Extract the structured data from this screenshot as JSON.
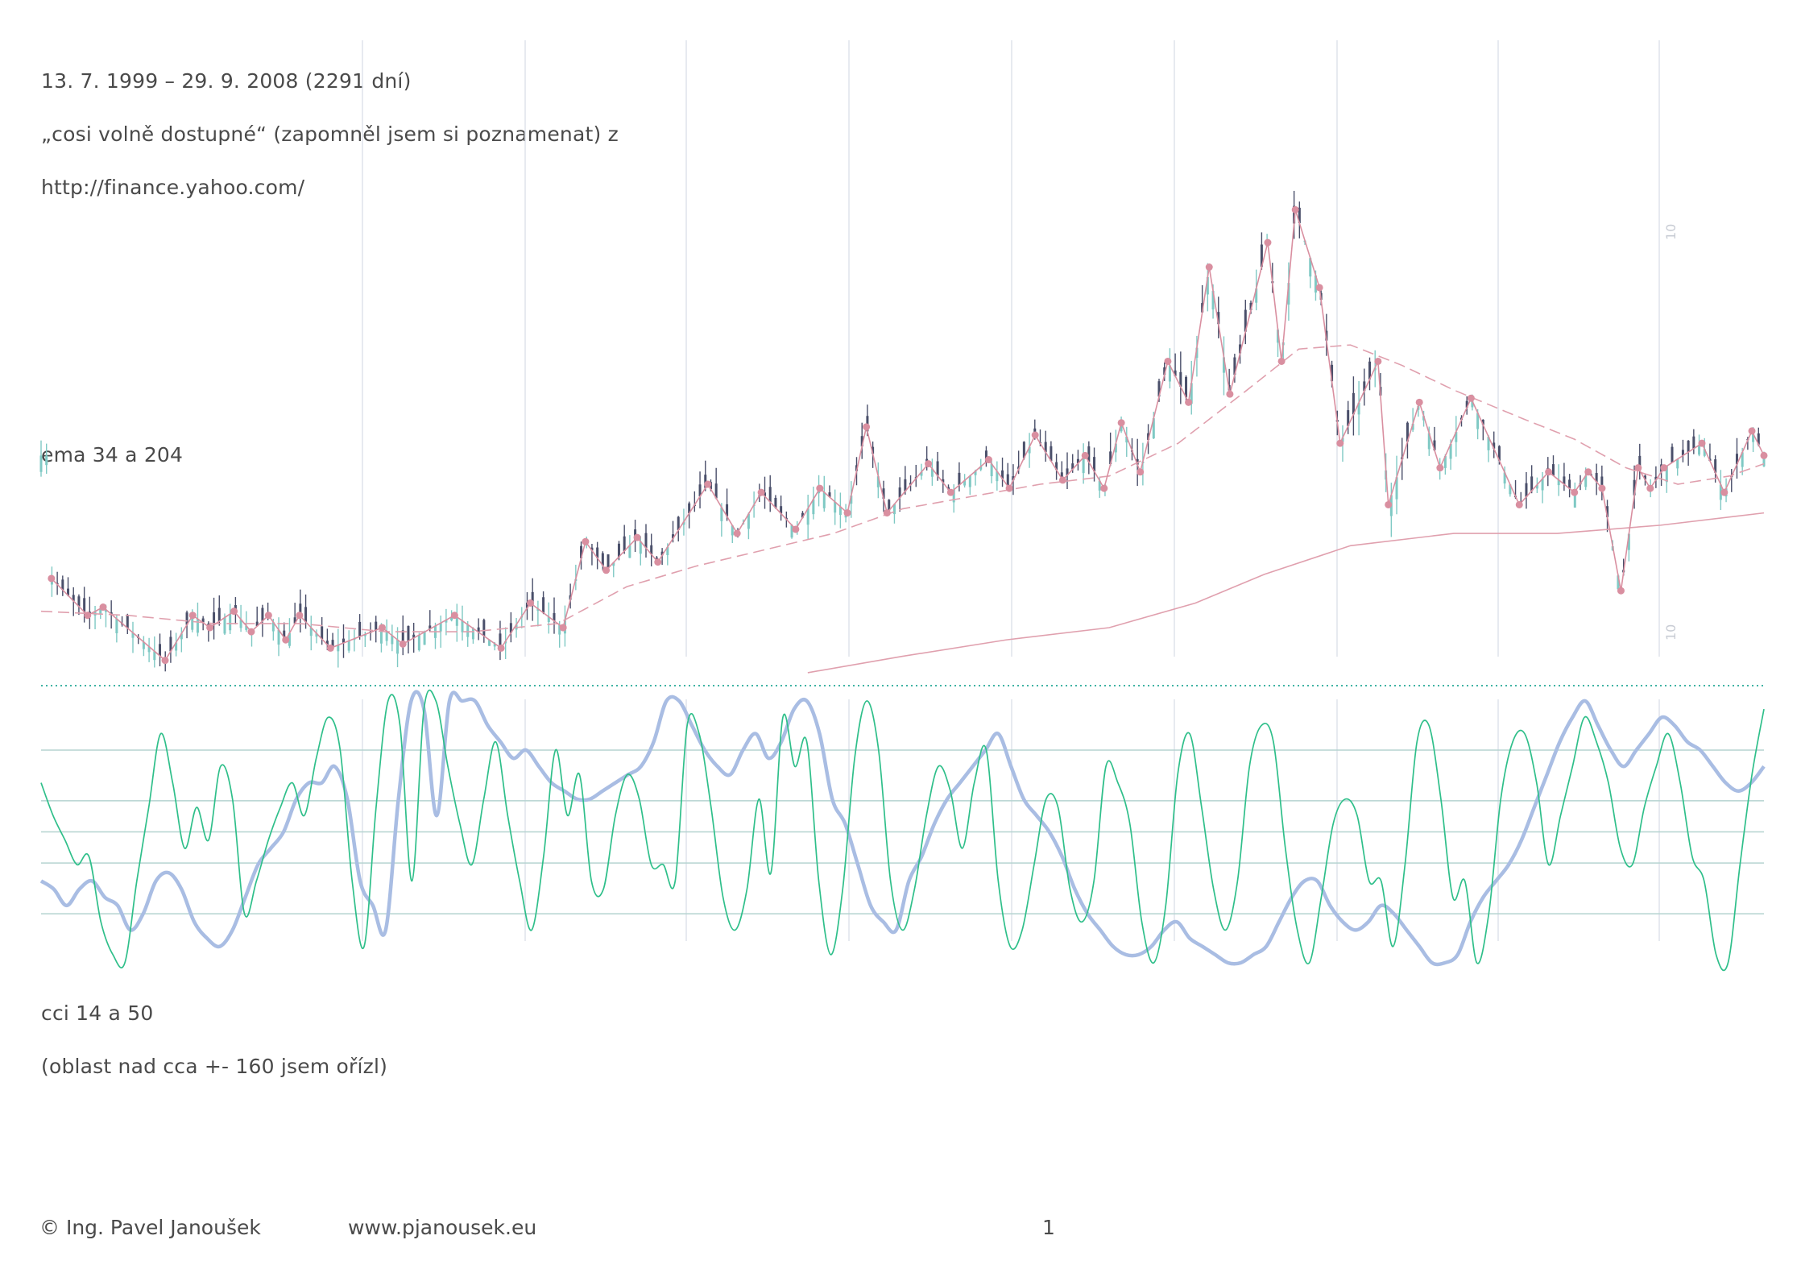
{
  "header": {
    "date_range": "13. 7. 1999 – 29. 9. 2008 (2291 dní)",
    "source_line": "„cosi volně dostupné“ (zapomněl jsem si poznamenat) z",
    "source_url": "http://finance.yahoo.com/"
  },
  "labels": {
    "ema": "ema 34 a 204",
    "cci": "cci 14 a 50",
    "cci_note": "(oblast nad cca +- 160 jsem ořízl)"
  },
  "footer": {
    "author": "© Ing. Pavel Janoušek",
    "website": "www.pjanousek.eu",
    "page_number": "1"
  },
  "colors": {
    "text": "#4a4a4a",
    "grid": "#dfe3ec",
    "candle_up": "#7fc9c4",
    "candle_down": "#4a4f6a",
    "zigzag": "#d98fa0",
    "ema": "#e0a0ae",
    "cci_fast": "#2fbf8a",
    "cci_slow": "#a9bde3",
    "cci_levels": "#b5d3d0",
    "separator": "#3fb3a3"
  },
  "chart_data": [
    {
      "type": "candlestick",
      "title": "",
      "axis_tick_labels": [
        "10",
        "10"
      ],
      "period": {
        "start": "1999-07-13",
        "end": "2008-09-29",
        "days": 2291
      },
      "zigzag_pivots": [
        {
          "x": 0.006,
          "y": 12.2
        },
        {
          "x": 0.027,
          "y": 11.3
        },
        {
          "x": 0.036,
          "y": 11.5
        },
        {
          "x": 0.072,
          "y": 10.2
        },
        {
          "x": 0.088,
          "y": 11.3
        },
        {
          "x": 0.098,
          "y": 11.0
        },
        {
          "x": 0.112,
          "y": 11.4
        },
        {
          "x": 0.122,
          "y": 10.9
        },
        {
          "x": 0.132,
          "y": 11.3
        },
        {
          "x": 0.142,
          "y": 10.7
        },
        {
          "x": 0.15,
          "y": 11.3
        },
        {
          "x": 0.168,
          "y": 10.5
        },
        {
          "x": 0.198,
          "y": 11.0
        },
        {
          "x": 0.21,
          "y": 10.6
        },
        {
          "x": 0.24,
          "y": 11.3
        },
        {
          "x": 0.267,
          "y": 10.5
        },
        {
          "x": 0.284,
          "y": 11.6
        },
        {
          "x": 0.303,
          "y": 11.0
        },
        {
          "x": 0.303,
          "y": 11.0
        },
        {
          "x": 0.316,
          "y": 13.1
        },
        {
          "x": 0.328,
          "y": 12.4
        },
        {
          "x": 0.346,
          "y": 13.2
        },
        {
          "x": 0.358,
          "y": 12.6
        },
        {
          "x": 0.387,
          "y": 14.5
        },
        {
          "x": 0.404,
          "y": 13.3
        },
        {
          "x": 0.418,
          "y": 14.3
        },
        {
          "x": 0.438,
          "y": 13.4
        },
        {
          "x": 0.452,
          "y": 14.4
        },
        {
          "x": 0.468,
          "y": 13.8
        },
        {
          "x": 0.479,
          "y": 15.9
        },
        {
          "x": 0.491,
          "y": 13.8
        },
        {
          "x": 0.515,
          "y": 15.0
        },
        {
          "x": 0.528,
          "y": 14.3
        },
        {
          "x": 0.55,
          "y": 15.1
        },
        {
          "x": 0.562,
          "y": 14.4
        },
        {
          "x": 0.577,
          "y": 15.7
        },
        {
          "x": 0.593,
          "y": 14.6
        },
        {
          "x": 0.606,
          "y": 15.2
        },
        {
          "x": 0.617,
          "y": 14.4
        },
        {
          "x": 0.627,
          "y": 16.0
        },
        {
          "x": 0.638,
          "y": 14.8
        },
        {
          "x": 0.654,
          "y": 17.5
        },
        {
          "x": 0.666,
          "y": 16.5
        },
        {
          "x": 0.678,
          "y": 19.8
        },
        {
          "x": 0.69,
          "y": 16.7
        },
        {
          "x": 0.712,
          "y": 20.4
        },
        {
          "x": 0.72,
          "y": 17.5
        },
        {
          "x": 0.728,
          "y": 21.2
        },
        {
          "x": 0.742,
          "y": 19.3
        },
        {
          "x": 0.754,
          "y": 15.5
        },
        {
          "x": 0.776,
          "y": 17.5
        },
        {
          "x": 0.782,
          "y": 14.0
        },
        {
          "x": 0.8,
          "y": 16.5
        },
        {
          "x": 0.812,
          "y": 14.9
        },
        {
          "x": 0.83,
          "y": 16.6
        },
        {
          "x": 0.858,
          "y": 14.0
        },
        {
          "x": 0.875,
          "y": 14.8
        },
        {
          "x": 0.89,
          "y": 14.3
        },
        {
          "x": 0.898,
          "y": 14.8
        },
        {
          "x": 0.906,
          "y": 14.4
        },
        {
          "x": 0.917,
          "y": 11.9
        },
        {
          "x": 0.927,
          "y": 14.9
        },
        {
          "x": 0.934,
          "y": 14.4
        },
        {
          "x": 0.942,
          "y": 14.9
        },
        {
          "x": 0.964,
          "y": 15.5
        },
        {
          "x": 0.977,
          "y": 14.3
        },
        {
          "x": 0.993,
          "y": 15.8
        },
        {
          "x": 1.0,
          "y": 15.2
        }
      ],
      "ema_34": [
        {
          "x": 0.0,
          "y": 11.4
        },
        {
          "x": 0.05,
          "y": 11.3
        },
        {
          "x": 0.1,
          "y": 11.1
        },
        {
          "x": 0.15,
          "y": 11.1
        },
        {
          "x": 0.2,
          "y": 10.9
        },
        {
          "x": 0.25,
          "y": 10.9
        },
        {
          "x": 0.3,
          "y": 11.1
        },
        {
          "x": 0.34,
          "y": 12.0
        },
        {
          "x": 0.38,
          "y": 12.5
        },
        {
          "x": 0.42,
          "y": 12.9
        },
        {
          "x": 0.46,
          "y": 13.3
        },
        {
          "x": 0.5,
          "y": 13.9
        },
        {
          "x": 0.54,
          "y": 14.2
        },
        {
          "x": 0.58,
          "y": 14.5
        },
        {
          "x": 0.62,
          "y": 14.7
        },
        {
          "x": 0.66,
          "y": 15.5
        },
        {
          "x": 0.7,
          "y": 16.8
        },
        {
          "x": 0.73,
          "y": 17.8
        },
        {
          "x": 0.76,
          "y": 17.9
        },
        {
          "x": 0.79,
          "y": 17.4
        },
        {
          "x": 0.82,
          "y": 16.8
        },
        {
          "x": 0.86,
          "y": 16.1
        },
        {
          "x": 0.89,
          "y": 15.6
        },
        {
          "x": 0.92,
          "y": 14.9
        },
        {
          "x": 0.95,
          "y": 14.5
        },
        {
          "x": 0.98,
          "y": 14.7
        },
        {
          "x": 1.0,
          "y": 15.0
        }
      ],
      "ema_204": [
        {
          "x": 0.445,
          "y": 9.9
        },
        {
          "x": 0.5,
          "y": 10.3
        },
        {
          "x": 0.56,
          "y": 10.7
        },
        {
          "x": 0.62,
          "y": 11.0
        },
        {
          "x": 0.67,
          "y": 11.6
        },
        {
          "x": 0.71,
          "y": 12.3
        },
        {
          "x": 0.76,
          "y": 13.0
        },
        {
          "x": 0.82,
          "y": 13.3
        },
        {
          "x": 0.88,
          "y": 13.3
        },
        {
          "x": 0.94,
          "y": 13.5
        },
        {
          "x": 1.0,
          "y": 13.8
        }
      ]
    },
    {
      "type": "line",
      "title": "",
      "ylim": [
        -160,
        160
      ],
      "levels": [
        100,
        0,
        -100
      ],
      "series": [
        {
          "name": "",
          "period": 14,
          "values": [
            60,
            20,
            -10,
            -40,
            -30,
            -110,
            -150,
            -170,
            -60,
            30,
            120,
            60,
            -20,
            30,
            -10,
            80,
            40,
            -100,
            -60,
            -10,
            30,
            60,
            20,
            90,
            140,
            100,
            -60,
            -140,
            30,
            160,
            130,
            -60,
            150,
            160,
            80,
            10,
            -40,
            40,
            110,
            20,
            -60,
            -120,
            -30,
            100,
            20,
            70,
            -60,
            -70,
            20,
            70,
            40,
            -40,
            -40,
            -60,
            130,
            120,
            30,
            -80,
            -120,
            -70,
            40,
            -50,
            140,
            80,
            110,
            -60,
            -150,
            -70,
            90,
            160,
            100,
            -60,
            -120,
            -70,
            20,
            80,
            50,
            -20,
            60,
            100,
            -60,
            -140,
            -120,
            -40,
            40,
            30,
            -70,
            -110,
            -60,
            80,
            60,
            10,
            -110,
            -160,
            -90,
            70,
            120,
            30,
            -70,
            -120,
            -60,
            80,
            130,
            110,
            -20,
            -120,
            -170,
            -80,
            10,
            40,
            20,
            -60,
            -60,
            -140,
            -40,
            110,
            130,
            40,
            -80,
            -60,
            -160,
            -100,
            40,
            110,
            120,
            60,
            -40,
            20,
            80,
            140,
            110,
            60,
            -20,
            -40,
            30,
            80,
            120,
            60,
            -30,
            -60,
            -150,
            -160,
            -40,
            70,
            150
          ]
        },
        {
          "name": "",
          "period": 50,
          "values": [
            -60,
            -70,
            -90,
            -70,
            -60,
            -80,
            -90,
            -120,
            -100,
            -60,
            -50,
            -70,
            -110,
            -130,
            -140,
            -120,
            -80,
            -40,
            -20,
            0,
            40,
            60,
            60,
            80,
            40,
            -60,
            -90,
            -120,
            40,
            160,
            150,
            20,
            160,
            160,
            160,
            130,
            110,
            90,
            100,
            80,
            60,
            50,
            40,
            40,
            50,
            60,
            70,
            80,
            110,
            160,
            160,
            130,
            100,
            80,
            70,
            100,
            120,
            90,
            110,
            150,
            160,
            120,
            40,
            10,
            -40,
            -90,
            -110,
            -120,
            -60,
            -30,
            10,
            40,
            60,
            80,
            100,
            120,
            80,
            40,
            20,
            0,
            -30,
            -70,
            -100,
            -120,
            -140,
            -150,
            -150,
            -140,
            -120,
            -110,
            -130,
            -140,
            -150,
            -160,
            -160,
            -150,
            -140,
            -110,
            -80,
            -60,
            -60,
            -90,
            -110,
            -120,
            -110,
            -90,
            -100,
            -120,
            -140,
            -160,
            -170,
            -150,
            -110,
            -80,
            -60,
            -40,
            -10,
            30,
            70,
            110,
            140,
            160,
            130,
            100,
            80,
            100,
            120,
            140,
            130,
            110,
            100,
            80,
            60,
            50,
            60,
            80
          ]
        }
      ]
    }
  ]
}
